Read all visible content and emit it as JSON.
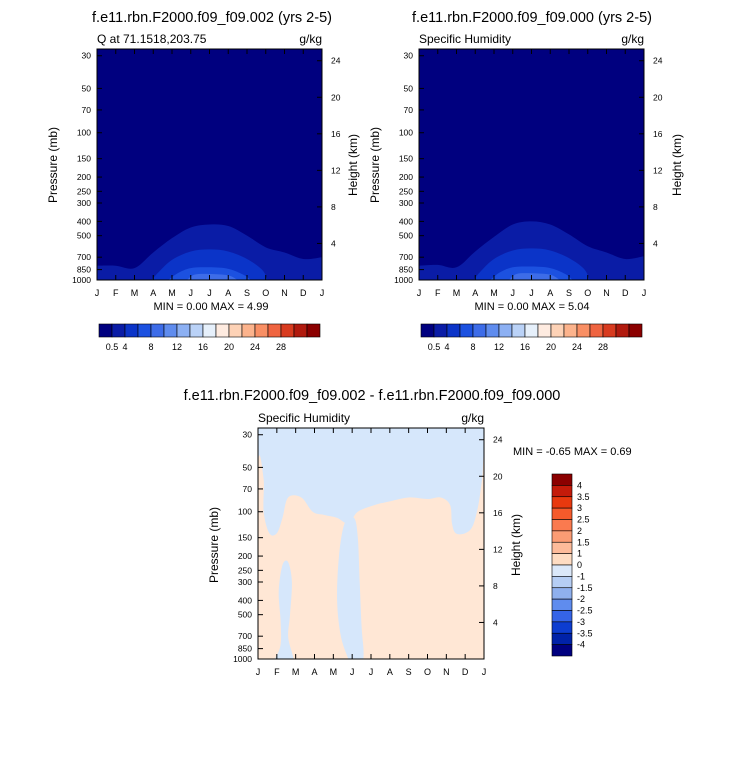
{
  "chart_data": [
    {
      "type": "heatmap",
      "title": "f.e11.rbn.F2000.f09_f09.002 (yrs 2-5)",
      "left_label": "Q at 71.1518,203.75",
      "units": "g/kg",
      "xlabel": "",
      "ylabel": "Pressure (mb)",
      "ylabel_right": "Height (km)",
      "x_ticks": [
        "J",
        "F",
        "M",
        "A",
        "M",
        "J",
        "J",
        "A",
        "S",
        "O",
        "N",
        "D",
        "J"
      ],
      "y_ticks": [
        30,
        50,
        70,
        100,
        150,
        200,
        250,
        300,
        400,
        500,
        700,
        850,
        1000
      ],
      "y_ticks_right": [
        24,
        20,
        16,
        12,
        8,
        4
      ],
      "ylim": [
        1000,
        30
      ],
      "y_scale": "log",
      "min_max_text": "MIN =   0.00 MAX =   4.99",
      "contours": [
        {
          "level": 0.5,
          "top": [
            [
              0,
              800
            ],
            [
              1,
              800
            ],
            [
              2,
              830
            ],
            [
              3,
              650
            ],
            [
              4,
              520
            ],
            [
              5,
              440
            ],
            [
              6,
              420
            ],
            [
              7,
              430
            ],
            [
              8,
              500
            ],
            [
              9,
              600
            ],
            [
              10,
              650
            ],
            [
              11,
              720
            ],
            [
              12,
              700
            ]
          ]
        },
        {
          "level": 1.0,
          "top": [
            [
              2.9,
              1000
            ],
            [
              3.3,
              880
            ],
            [
              4,
              730
            ],
            [
              5,
              640
            ],
            [
              6,
              620
            ],
            [
              7,
              640
            ],
            [
              8,
              720
            ],
            [
              8.8,
              850
            ],
            [
              9.1,
              1000
            ]
          ]
        },
        {
          "level": 1.5,
          "top": [
            [
              3.8,
              1000
            ],
            [
              4.3,
              900
            ],
            [
              5,
              830
            ],
            [
              6,
              820
            ],
            [
              7,
              840
            ],
            [
              7.8,
              920
            ],
            [
              8.2,
              1000
            ]
          ]
        },
        {
          "level": 2.0,
          "top": [
            [
              4.8,
              1000
            ],
            [
              5.2,
              920
            ],
            [
              6,
              910
            ],
            [
              7,
              930
            ],
            [
              7.5,
              1000
            ]
          ]
        }
      ]
    },
    {
      "type": "heatmap",
      "title": "f.e11.rbn.F2000.f09_f09.000 (yrs 2-5)",
      "left_label": "Specific Humidity",
      "units": "g/kg",
      "xlabel": "",
      "ylabel": "Pressure (mb)",
      "ylabel_right": "Height (km)",
      "x_ticks": [
        "J",
        "F",
        "M",
        "A",
        "M",
        "J",
        "J",
        "A",
        "S",
        "O",
        "N",
        "D",
        "J"
      ],
      "y_ticks": [
        30,
        50,
        70,
        100,
        150,
        200,
        250,
        300,
        400,
        500,
        700,
        850,
        1000
      ],
      "y_ticks_right": [
        24,
        20,
        16,
        12,
        8,
        4
      ],
      "ylim": [
        1000,
        30
      ],
      "y_scale": "log",
      "min_max_text": "MIN =   0.00 MAX =   5.04",
      "contours": [
        {
          "level": 0.5,
          "top": [
            [
              0,
              800
            ],
            [
              1,
              790
            ],
            [
              2,
              820
            ],
            [
              3,
              640
            ],
            [
              4,
              510
            ],
            [
              5,
              420
            ],
            [
              6,
              400
            ],
            [
              7,
              420
            ],
            [
              8,
              490
            ],
            [
              9,
              590
            ],
            [
              10,
              650
            ],
            [
              11,
              720
            ],
            [
              12,
              690
            ]
          ]
        },
        {
          "level": 1.0,
          "top": [
            [
              2.9,
              1000
            ],
            [
              3.3,
              870
            ],
            [
              4,
              720
            ],
            [
              5,
              630
            ],
            [
              6,
              610
            ],
            [
              7,
              630
            ],
            [
              8,
              710
            ],
            [
              8.8,
              840
            ],
            [
              9.1,
              1000
            ]
          ]
        },
        {
          "level": 1.5,
          "top": [
            [
              3.8,
              1000
            ],
            [
              4.3,
              890
            ],
            [
              5,
              820
            ],
            [
              6,
              810
            ],
            [
              7,
              830
            ],
            [
              7.8,
              910
            ],
            [
              8.2,
              1000
            ]
          ]
        },
        {
          "level": 2.0,
          "top": [
            [
              4.8,
              1000
            ],
            [
              5.2,
              910
            ],
            [
              6,
              900
            ],
            [
              7,
              920
            ],
            [
              7.5,
              1000
            ]
          ]
        }
      ]
    },
    {
      "type": "heatmap",
      "title": "f.e11.rbn.F2000.f09_f09.002 - f.e11.rbn.F2000.f09_f09.000",
      "left_label": "Specific Humidity",
      "units": "g/kg",
      "xlabel": "",
      "ylabel": "Pressure (mb)",
      "ylabel_right": "Height (km)",
      "x_ticks": [
        "J",
        "F",
        "M",
        "A",
        "M",
        "J",
        "J",
        "A",
        "S",
        "O",
        "N",
        "D",
        "J"
      ],
      "y_ticks": [
        30,
        50,
        70,
        100,
        150,
        200,
        250,
        300,
        400,
        500,
        700,
        850,
        1000
      ],
      "y_ticks_right": [
        24,
        20,
        16,
        12,
        8,
        4
      ],
      "ylim": [
        1000,
        30
      ],
      "y_scale": "log",
      "min_max_text": "MIN =  -0.65 MAX =   0.69",
      "regions": [
        {
          "sign": "positive",
          "polygon": [
            [
              0,
              1000
            ],
            [
              0,
              50
            ],
            [
              0.3,
              60
            ],
            [
              0.3,
              100
            ],
            [
              0.6,
              140
            ],
            [
              1,
              140
            ],
            [
              1.3,
              110
            ],
            [
              1.6,
              80
            ],
            [
              2.3,
              80
            ],
            [
              2.9,
              100
            ],
            [
              3.5,
              105
            ],
            [
              4.2,
              110
            ],
            [
              4.8,
              120
            ],
            [
              5.3,
              100
            ],
            [
              6.2,
              90
            ],
            [
              7,
              85
            ],
            [
              8,
              80
            ],
            [
              9,
              82
            ],
            [
              9.7,
              80
            ],
            [
              10.2,
              90
            ],
            [
              10.3,
              120
            ],
            [
              10.5,
              140
            ],
            [
              11,
              140
            ],
            [
              11.4,
              125
            ],
            [
              11.7,
              90
            ],
            [
              11.9,
              60
            ],
            [
              12,
              50
            ],
            [
              12,
              1000
            ]
          ]
        },
        {
          "sign": "negative",
          "polygon": [
            [
              0.9,
              1000
            ],
            [
              1.2,
              800
            ],
            [
              1.2,
              550
            ],
            [
              1.1,
              350
            ],
            [
              1.3,
              230
            ],
            [
              1.6,
              220
            ],
            [
              1.8,
              300
            ],
            [
              1.7,
              500
            ],
            [
              1.6,
              700
            ],
            [
              1.8,
              900
            ],
            [
              1.9,
              1000
            ]
          ]
        },
        {
          "sign": "negative",
          "polygon": [
            [
              4.8,
              1000
            ],
            [
              4.4,
              700
            ],
            [
              4.2,
              400
            ],
            [
              4.3,
              200
            ],
            [
              4.6,
              120
            ],
            [
              5.1,
              110
            ],
            [
              5.3,
              150
            ],
            [
              5.4,
              300
            ],
            [
              5.5,
              600
            ],
            [
              5.6,
              850
            ],
            [
              5.6,
              1000
            ]
          ]
        }
      ],
      "colorbar": {
        "labels": [
          "4",
          "3.5",
          "3",
          "2.5",
          "2",
          "1.5",
          "1",
          "0",
          "-1",
          "-1.5",
          "-2",
          "-2.5",
          "-3",
          "-3.5",
          "-4"
        ],
        "colors": [
          "#8b0000",
          "#c41b0a",
          "#e8390e",
          "#f55a2b",
          "#fa7a4f",
          "#fb9c74",
          "#fdbb9a",
          "#fedcc2",
          "#dbe8f9",
          "#b6cef4",
          "#8fb0ee",
          "#5f8cee",
          "#3564e8",
          "#0d3dd0",
          "#0022a8",
          "#00007f"
        ]
      }
    }
  ],
  "colorbar_top": {
    "labels": [
      "0.5",
      "4",
      "8",
      "12",
      "16",
      "20",
      "24",
      "28"
    ],
    "colors": [
      "#00007f",
      "#0a1ca6",
      "#0b34c8",
      "#1c51e0",
      "#3d6ce8",
      "#5f8cee",
      "#8cb0f3",
      "#bad2f7",
      "#e6f0fb",
      "#feebe0",
      "#fdd2b6",
      "#fcb38c",
      "#f98f64",
      "#ef6440",
      "#d83b1f",
      "#b11a0e",
      "#8b0000"
    ]
  },
  "colors": {
    "q0": "#00007f",
    "q1": "#0a1ca6",
    "q2": "#0b34c8",
    "q3": "#1c51e0",
    "q4": "#3d6ce8",
    "pos": "#ffe7d5",
    "neg": "#d6e7fb"
  }
}
